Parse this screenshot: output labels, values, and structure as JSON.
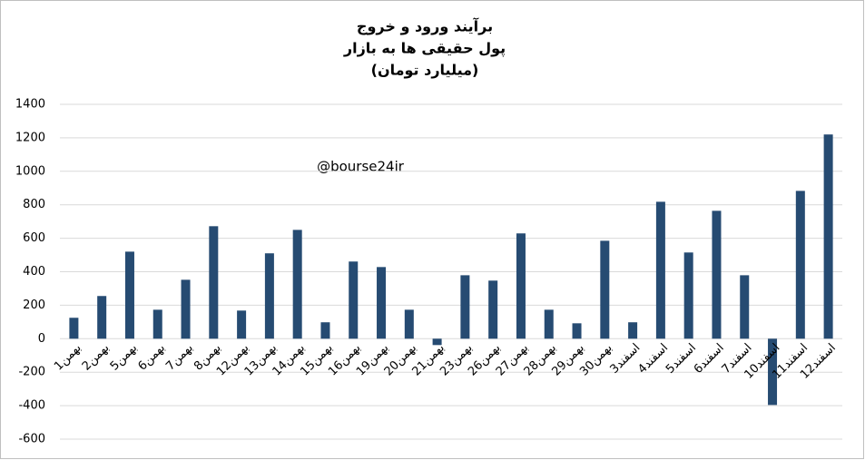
{
  "chart_data": {
    "type": "bar",
    "title": [
      "برآیند ورود و خروج",
      "پول حقیقی ها به بازار",
      "(میلیارد تومان)"
    ],
    "annotation": "@bourse24ir",
    "categories": [
      "1بهمن",
      "2بهمن",
      "5بهمن",
      "6بهمن",
      "7بهمن",
      "8بهمن",
      "12بهمن",
      "13بهمن",
      "14بهمن",
      "15بهمن",
      "16بهمن",
      "19بهمن",
      "20بهمن",
      "21بهمن",
      "23بهمن",
      "26بهمن",
      "27بهمن",
      "28بهمن",
      "29بهمن",
      "30بهمن",
      "3اسفند",
      "4اسفند",
      "5اسفند",
      "6اسفند",
      "7اسفند",
      "10اسفند",
      "11اسفند",
      "12اسفند"
    ],
    "values": [
      125,
      255,
      520,
      173,
      352,
      672,
      168,
      510,
      650,
      98,
      461,
      428,
      173,
      -38,
      379,
      347,
      629,
      173,
      92,
      585,
      98,
      818,
      515,
      764,
      379,
      -396,
      883,
      1220
    ],
    "color": "#264b72",
    "ylim": [
      -600,
      1400
    ],
    "yticks": [
      -600,
      -400,
      -200,
      0,
      200,
      400,
      600,
      800,
      1000,
      1200,
      1400
    ],
    "grid": true
  }
}
